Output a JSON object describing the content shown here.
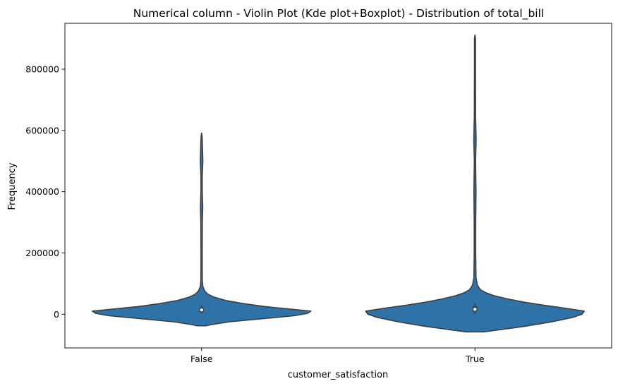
{
  "chart_data": {
    "type": "violin",
    "title": "Numerical column - Violin Plot (Kde plot+Boxplot) - Distribution of  total_bill",
    "xlabel": "customer_satisfaction",
    "ylabel": "Frequency",
    "categories": [
      "False",
      "True"
    ],
    "ylim": [
      -110000,
      950000
    ],
    "yticks": [
      0,
      200000,
      400000,
      600000,
      800000
    ],
    "ytick_labels": [
      "0",
      "200000",
      "400000",
      "600000",
      "800000"
    ],
    "grid": false,
    "legend": "none",
    "violin_color": "#2f72a8",
    "edge_color": "#3b3b3b",
    "violins": [
      {
        "category": "False",
        "min": -38000,
        "max": 592000,
        "box": {
          "q1": 7000,
          "median": 14000,
          "q3": 22000,
          "whisker_low": 2000,
          "whisker_high": 31000
        },
        "profile": [
          [
            -38000,
            0.04
          ],
          [
            -34000,
            0.09
          ],
          [
            -25000,
            0.25
          ],
          [
            -15000,
            0.55
          ],
          [
            -5000,
            0.85
          ],
          [
            3000,
            0.97
          ],
          [
            10000,
            1.0
          ],
          [
            18000,
            0.78
          ],
          [
            25000,
            0.58
          ],
          [
            35000,
            0.38
          ],
          [
            45000,
            0.22
          ],
          [
            55000,
            0.12
          ],
          [
            65000,
            0.06
          ],
          [
            75000,
            0.03
          ],
          [
            90000,
            0.012
          ],
          [
            110000,
            0.007
          ],
          [
            150000,
            0.006
          ],
          [
            200000,
            0.006
          ],
          [
            300000,
            0.007
          ],
          [
            350000,
            0.011
          ],
          [
            400000,
            0.006
          ],
          [
            450000,
            0.006
          ],
          [
            500000,
            0.012
          ],
          [
            550000,
            0.008
          ],
          [
            580000,
            0.005
          ],
          [
            592000,
            0.0
          ]
        ]
      },
      {
        "category": "True",
        "min": -58000,
        "max": 912000,
        "box": {
          "q1": 8000,
          "median": 16000,
          "q3": 26000,
          "whisker_low": 2000,
          "whisker_high": 36000
        },
        "profile": [
          [
            -58000,
            0.08
          ],
          [
            -52000,
            0.2
          ],
          [
            -40000,
            0.45
          ],
          [
            -25000,
            0.7
          ],
          [
            -10000,
            0.9
          ],
          [
            0,
            0.98
          ],
          [
            10000,
            1.0
          ],
          [
            20000,
            0.82
          ],
          [
            30000,
            0.62
          ],
          [
            40000,
            0.44
          ],
          [
            50000,
            0.3
          ],
          [
            60000,
            0.18
          ],
          [
            70000,
            0.1
          ],
          [
            80000,
            0.05
          ],
          [
            95000,
            0.022
          ],
          [
            120000,
            0.01
          ],
          [
            200000,
            0.007
          ],
          [
            300000,
            0.007
          ],
          [
            400000,
            0.01
          ],
          [
            500000,
            0.006
          ],
          [
            570000,
            0.011
          ],
          [
            650000,
            0.006
          ],
          [
            800000,
            0.005
          ],
          [
            900000,
            0.005
          ],
          [
            912000,
            0.0
          ]
        ]
      }
    ]
  }
}
